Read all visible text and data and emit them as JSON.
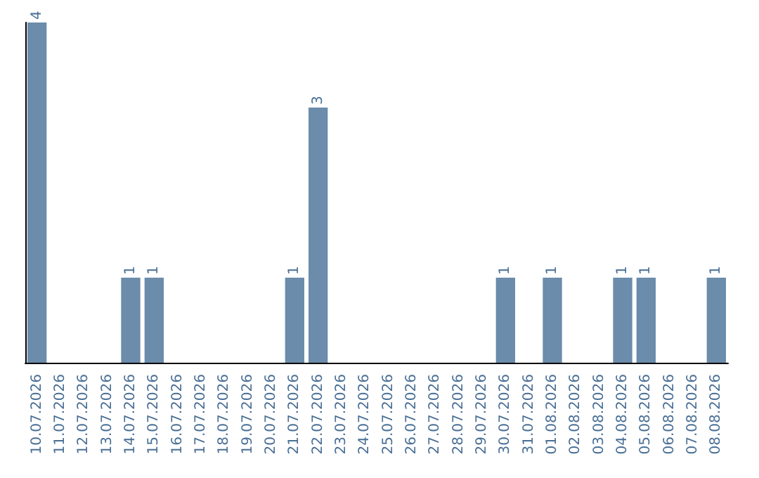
{
  "chart_data": {
    "type": "bar",
    "categories": [
      "10.07.2026",
      "11.07.2026",
      "12.07.2026",
      "13.07.2026",
      "14.07.2026",
      "15.07.2026",
      "16.07.2026",
      "17.07.2026",
      "18.07.2026",
      "19.07.2026",
      "20.07.2026",
      "21.07.2026",
      "22.07.2026",
      "23.07.2026",
      "24.07.2026",
      "25.07.2026",
      "26.07.2026",
      "27.07.2026",
      "28.07.2026",
      "29.07.2026",
      "30.07.2026",
      "31.07.2026",
      "01.08.2026",
      "02.08.2026",
      "03.08.2026",
      "04.08.2026",
      "05.08.2026",
      "06.08.2026",
      "07.08.2026",
      "08.08.2026"
    ],
    "values": [
      4,
      0,
      0,
      0,
      1,
      1,
      0,
      0,
      0,
      0,
      0,
      1,
      3,
      0,
      0,
      0,
      0,
      0,
      0,
      0,
      1,
      0,
      1,
      0,
      0,
      1,
      1,
      0,
      0,
      1
    ],
    "value_labels": [
      "4",
      null,
      null,
      null,
      "1",
      "1",
      null,
      null,
      null,
      null,
      null,
      "1",
      "3",
      null,
      null,
      null,
      null,
      null,
      null,
      null,
      "1",
      null,
      "1",
      null,
      null,
      "1",
      "1",
      null,
      null,
      "1"
    ],
    "color": "#6b8cab",
    "tick_labels": "x",
    "grid": false
  }
}
